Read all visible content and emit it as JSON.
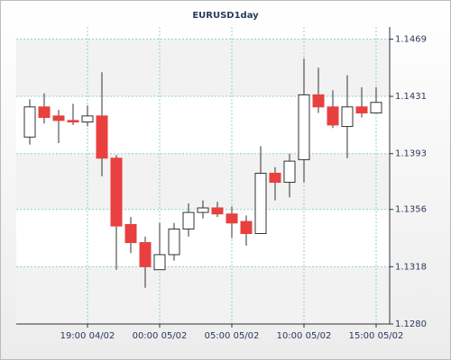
{
  "chart_data": {
    "type": "candlestick",
    "title": "EURUSD1day",
    "categories": [
      null,
      null,
      null,
      null,
      "19:00 04/02",
      null,
      null,
      null,
      null,
      "00:00 05/02",
      null,
      null,
      null,
      null,
      "05:00 05/02",
      null,
      null,
      null,
      null,
      "10:00 05/02",
      null,
      null,
      null,
      null,
      "15:00 05/02"
    ],
    "open": [
      1.1404,
      1.1424,
      1.1418,
      1.1415,
      1.1414,
      1.1418,
      1.139,
      1.1346,
      1.1334,
      1.1316,
      1.1326,
      1.1343,
      1.1354,
      1.1357,
      1.1353,
      1.1348,
      1.134,
      1.138,
      1.1374,
      1.1389,
      1.1432,
      1.1424,
      1.1411,
      1.1424,
      1.142
    ],
    "high": [
      1.1429,
      1.1433,
      1.1422,
      1.1426,
      1.1425,
      1.1447,
      1.1392,
      1.1351,
      1.1338,
      1.1347,
      1.1347,
      1.136,
      1.1362,
      1.1361,
      1.1358,
      1.1352,
      1.1398,
      1.1384,
      1.1393,
      1.1456,
      1.145,
      1.1435,
      1.1445,
      1.1437,
      1.1437
    ],
    "low": [
      1.1399,
      1.1413,
      1.14,
      1.1412,
      1.1411,
      1.1378,
      1.1316,
      1.1327,
      1.1304,
      1.1316,
      1.1322,
      1.1338,
      1.135,
      1.1351,
      1.1337,
      1.1332,
      1.134,
      1.1362,
      1.1364,
      1.1374,
      1.142,
      1.141,
      1.139,
      1.1417,
      1.142
    ],
    "close": [
      1.1424,
      1.1417,
      1.1415,
      1.1414,
      1.1418,
      1.139,
      1.1345,
      1.1334,
      1.1318,
      1.1326,
      1.1343,
      1.1354,
      1.1357,
      1.1353,
      1.1347,
      1.134,
      1.138,
      1.1374,
      1.1388,
      1.1432,
      1.1424,
      1.1412,
      1.1424,
      1.142,
      1.1427
    ],
    "up_color": "#ffffff",
    "down_color": "#e8403f",
    "ylim": [
      1.128,
      1.1477
    ],
    "yticks": [
      {
        "value": 1.128,
        "label": "1.1280"
      },
      1.1318,
      1.1356,
      1.1393,
      1.1431,
      1.1469
    ],
    "grid": true
  }
}
